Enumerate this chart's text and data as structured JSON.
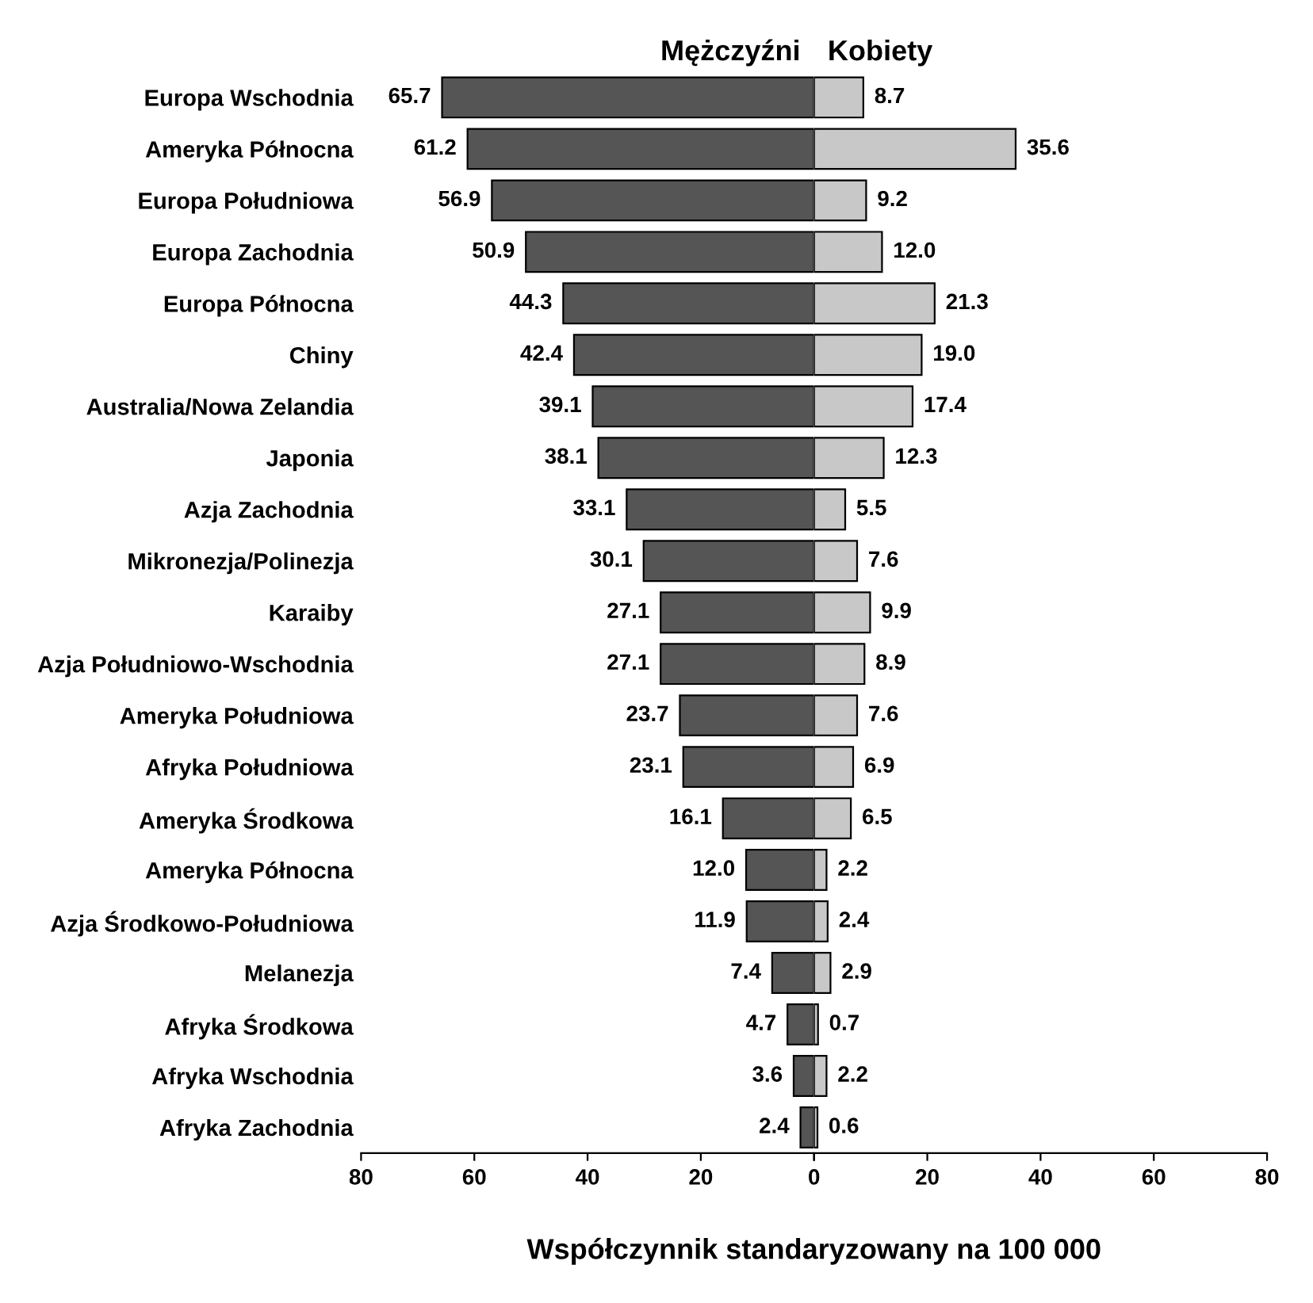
{
  "chart_data": [
    {
      "type": "bar",
      "orientation": "horizontal",
      "xlabel": "Współczynnik standaryzowany na 100 000",
      "categories": [
        "Europa Wschodnia",
        "Ameryka Północna",
        "Europa Południowa",
        "Europa Zachodnia",
        "Europa Północna",
        "Chiny",
        "Australia/Nowa Zelandia",
        "Japonia",
        "Azja Zachodnia",
        "Mikronezja/Polinezja",
        "Karaiby",
        "Azja Południowo-Wschodnia",
        "Ameryka Południowa",
        "Afryka Południowa",
        "Ameryka Środkowa",
        "Ameryka Północna",
        "Azja Środkowo-Południowa",
        "Melanezja",
        "Afryka Środkowa",
        "Afryka Wschodnia",
        "Afryka Zachodnia"
      ],
      "series": [
        {
          "name": "Mężczyźni",
          "color": "#555555",
          "values": [
            65.7,
            61.2,
            56.9,
            50.9,
            44.3,
            42.4,
            39.1,
            38.1,
            33.1,
            30.1,
            27.1,
            27.1,
            23.7,
            23.1,
            16.1,
            12.0,
            11.9,
            7.4,
            4.7,
            3.6,
            2.4
          ],
          "value_labels": [
            "65.7",
            "61.2",
            "56.9",
            "50.9",
            "44.3",
            "42.4",
            "39.1",
            "38.1",
            "33.1",
            "30.1",
            "27.1",
            "27.1",
            "23.7",
            "23.1",
            "16.1",
            "12.0",
            "11.9",
            "7.4",
            "4.7",
            "3.6",
            "2.4"
          ]
        }
      ],
      "xlim": [
        80,
        0
      ],
      "xticks": [
        80,
        60,
        40,
        20,
        0
      ],
      "grid": false,
      "legend": false
    },
    {
      "type": "bar",
      "orientation": "horizontal",
      "categories": [
        null,
        null,
        null,
        null,
        null,
        null,
        null,
        null,
        null,
        null,
        null,
        null,
        null,
        null,
        null,
        null,
        null,
        null,
        null,
        null,
        null
      ],
      "series": [
        {
          "name": "Kobiety",
          "color": "#c8c8c8",
          "values": [
            8.7,
            35.6,
            9.2,
            12.0,
            21.3,
            19.0,
            17.4,
            12.3,
            5.5,
            7.6,
            9.9,
            8.9,
            7.6,
            6.9,
            6.5,
            2.2,
            2.4,
            2.9,
            0.7,
            2.2,
            0.6
          ],
          "value_labels": [
            "8.7",
            "35.6",
            "9.2",
            "12.0",
            "21.3",
            "19.0",
            "17.4",
            "12.3",
            "5.5",
            "7.6",
            "9.9",
            "8.9",
            "7.6",
            "6.9",
            "6.5",
            "2.2",
            "2.4",
            "2.9",
            "0.7",
            "2.2",
            "0.6"
          ]
        }
      ],
      "xlim": [
        0,
        80
      ],
      "xticks": [
        {
          "value": 0,
          "label": null
        },
        20,
        40,
        60,
        80
      ],
      "tick_labels": "x",
      "grid": false,
      "legend": false
    }
  ]
}
